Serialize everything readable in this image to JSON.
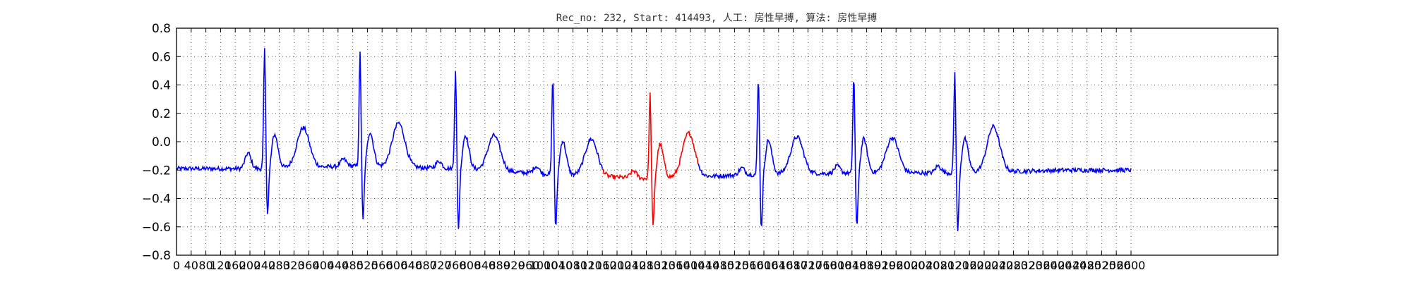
{
  "chart_data": {
    "type": "line",
    "title": "Rec_no: 232, Start: 414493, 人工: 房性早搏, 算法: 房性早搏",
    "xlabel": "",
    "ylabel": "",
    "xlim": [
      0,
      3000
    ],
    "ylim": [
      -0.8,
      0.8
    ],
    "grid": true,
    "y_ticks": [
      "0.8",
      "0.6",
      "0.4",
      "0.2",
      "0.0",
      "−0.2",
      "−0.4",
      "−0.6",
      "−0.8"
    ],
    "y_tick_values": [
      0.8,
      0.6,
      0.4,
      0.2,
      0.0,
      -0.2,
      -0.4,
      -0.6,
      -0.8
    ],
    "x_ticks": [
      "0",
      "40",
      "80",
      "120",
      "160",
      "200",
      "240",
      "280",
      "320",
      "360",
      "400",
      "440",
      "480",
      "520",
      "560",
      "600",
      "640",
      "680",
      "720",
      "760",
      "800",
      "840",
      "880",
      "920",
      "960",
      "1000",
      "1040",
      "1080",
      "1120",
      "1160",
      "1200",
      "1240",
      "1280",
      "1320",
      "1360",
      "1400",
      "1440",
      "1480",
      "1520",
      "1560",
      "1600",
      "1640",
      "1680",
      "1720",
      "1760",
      "1800",
      "1840",
      "1880",
      "1920",
      "1960",
      "2000",
      "2040",
      "2080",
      "2120",
      "2160",
      "2200",
      "2240",
      "2280",
      "2320",
      "2360",
      "2400",
      "2440",
      "2480",
      "2520",
      "2560",
      "2600"
    ],
    "x_tick_values": [
      0,
      40,
      80,
      120,
      160,
      200,
      240,
      280,
      320,
      360,
      400,
      440,
      480,
      520,
      560,
      600,
      640,
      680,
      720,
      760,
      800,
      840,
      880,
      920,
      960,
      1000,
      1040,
      1080,
      1120,
      1160,
      1200,
      1240,
      1280,
      1320,
      1360,
      1400,
      1440,
      1480,
      1520,
      1560,
      1600,
      1640,
      1680,
      1720,
      1760,
      1800,
      1840,
      1880,
      1920,
      1960,
      2000,
      2040,
      2080,
      2120,
      2160,
      2200,
      2240,
      2280,
      2320,
      2360,
      2400,
      2440,
      2480,
      2520,
      2560,
      2600
    ],
    "series": [
      {
        "color": "#0000ff",
        "beats": [
          {
            "r": 240,
            "rh": 0.66,
            "s": -0.5,
            "base": -0.19,
            "t": 0.09,
            "p": -0.08
          },
          {
            "r": 500,
            "rh": 0.63,
            "s": -0.55,
            "base": -0.17,
            "t": 0.14
          },
          {
            "r": 760,
            "rh": 0.51,
            "s": -0.6,
            "base": -0.19,
            "t": 0.06
          },
          {
            "r": 1025,
            "rh": 0.46,
            "s": -0.6,
            "base": -0.23,
            "t": 0.03
          },
          {
            "r": 1585,
            "rh": 0.45,
            "s": -0.6,
            "base": -0.23,
            "t": 0.03
          },
          {
            "r": 1845,
            "rh": 0.47,
            "s": -0.6,
            "base": -0.22,
            "t": 0.03
          },
          {
            "r": 2120,
            "rh": 0.49,
            "s": -0.62,
            "base": -0.22,
            "t": 0.1
          }
        ],
        "x_range": [
          0,
          2600
        ]
      },
      {
        "color": "#ff0000",
        "beats": [
          {
            "r": 1290,
            "rh": 0.34,
            "s": -0.59,
            "base": -0.26,
            "t": 0.05
          }
        ],
        "x_range": [
          1160,
          1420
        ]
      }
    ]
  }
}
